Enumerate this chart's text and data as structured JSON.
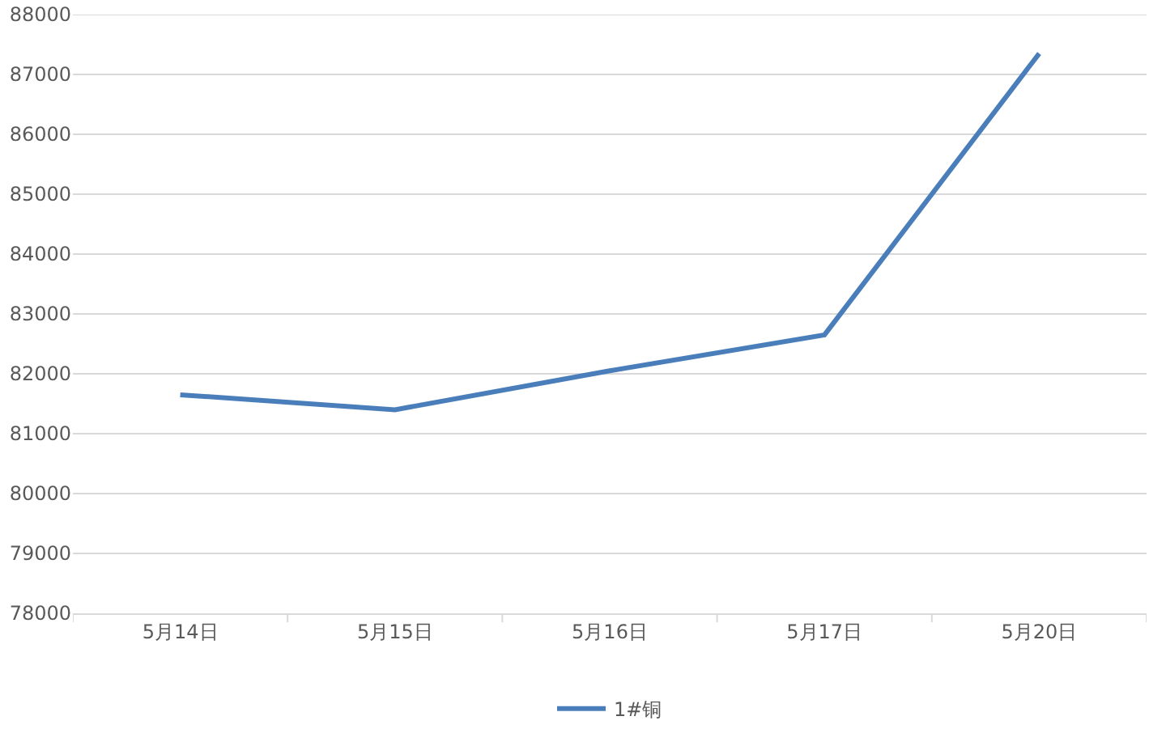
{
  "chart_data": {
    "type": "line",
    "categories": [
      "5月14日",
      "5月15日",
      "5月16日",
      "5月17日",
      "5月20日"
    ],
    "series": [
      {
        "name": "1#铜",
        "color": "#4a7ebb",
        "values": [
          81650,
          81400,
          82050,
          82650,
          87350
        ]
      }
    ],
    "ylim": [
      78000,
      88000
    ],
    "yticks": [
      78000,
      79000,
      80000,
      81000,
      82000,
      83000,
      84000,
      85000,
      86000,
      87000,
      88000
    ],
    "grid": "y",
    "legend": "bottom",
    "marker": "none",
    "line_style": "solid"
  }
}
